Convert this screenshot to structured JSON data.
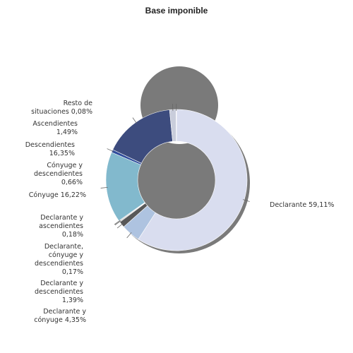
{
  "chart_data": {
    "type": "pie",
    "style": "donut",
    "title": "Base imponible",
    "slices": [
      {
        "name": "Declarante",
        "value": 59.11,
        "label_lines": [
          "Declarante 59,11%"
        ],
        "color": "#d9ddef"
      },
      {
        "name": "Declarante y cónyuge",
        "value": 4.35,
        "label_lines": [
          "Declarante y",
          "cónyuge 4,35%"
        ],
        "color": "#aec3e0"
      },
      {
        "name": "Declarante y descendientes",
        "value": 1.39,
        "label_lines": [
          "Declarante y",
          "descendientes",
          "1,39%"
        ],
        "color": "#585858"
      },
      {
        "name": "Declarante, cónyuge y descendientes",
        "value": 0.17,
        "label_lines": [
          "Declarante,",
          "cónyuge y",
          "descendientes",
          "0,17%"
        ],
        "color": "#8a8a8a"
      },
      {
        "name": "Declarante y ascendientes",
        "value": 0.18,
        "label_lines": [
          "Declarante y",
          "ascendientes",
          "0,18%"
        ],
        "color": "#b0b0b0"
      },
      {
        "name": "Cónyuge",
        "value": 16.22,
        "label_lines": [
          "Cónyuge 16,22%"
        ],
        "color": "#82b9cd"
      },
      {
        "name": "Cónyuge y descendientes",
        "value": 0.66,
        "label_lines": [
          "Cónyuge y",
          "descendientes",
          "0,66%"
        ],
        "color": "#2f4d9c"
      },
      {
        "name": "Descendientes",
        "value": 16.35,
        "label_lines": [
          "Descendientes",
          "16,35%"
        ],
        "color": "#3d4c7e"
      },
      {
        "name": "Ascendientes",
        "value": 1.49,
        "label_lines": [
          "Ascendientes",
          "1,49%"
        ],
        "color": "#c9cddb"
      },
      {
        "name": "Resto de situaciones",
        "value": 0.08,
        "label_lines": [
          "Resto de",
          "situaciones 0,08%"
        ],
        "color": "#777777"
      }
    ]
  }
}
